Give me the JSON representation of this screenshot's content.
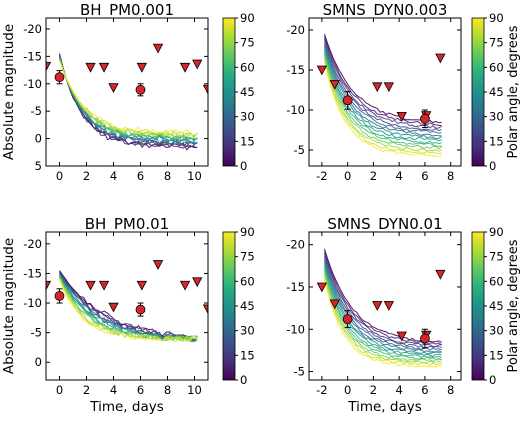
{
  "figure": {
    "ylabel_shared": "Absolute magnitude",
    "xlabel_shared": "Time, days",
    "colorbar_label": "Polar angle, degrees"
  },
  "chart_data": [
    {
      "type": "line",
      "title": "BH_PM0.001",
      "xlabel": "",
      "ylabel": "Absolute magnitude",
      "xlim": [
        -1,
        11
      ],
      "ylim": [
        5,
        -22
      ],
      "xticks": [
        0,
        2,
        4,
        6,
        8,
        10
      ],
      "yticks": [
        -20,
        -15,
        -10,
        -5,
        0,
        5
      ],
      "colorbar": {
        "min": 0,
        "max": 90,
        "ticks": [
          0,
          15,
          30,
          45,
          60,
          75,
          90
        ]
      },
      "model": {
        "t_start": 0,
        "t_end": 10.2,
        "peak_pole": -15.5,
        "peak_equator": -14.2,
        "tail_pole": 1.5,
        "tail_equator": -1.0,
        "tau_pole": 1.6,
        "tau_equator": 1.8,
        "curves": 14,
        "noise": 1.2
      },
      "detections": [
        {
          "x": 0,
          "y": -11.2,
          "err": 1.2
        },
        {
          "x": 6,
          "y": -8.9,
          "err": 1.1
        }
      ],
      "upper_limits": [
        {
          "x": -1,
          "y": -13.2
        },
        {
          "x": 2.3,
          "y": -13
        },
        {
          "x": 3.3,
          "y": -13
        },
        {
          "x": 4,
          "y": -9.3
        },
        {
          "x": 6.1,
          "y": -13
        },
        {
          "x": 7.3,
          "y": -16.5
        },
        {
          "x": 9.3,
          "y": -13
        },
        {
          "x": 10.2,
          "y": -13.6
        },
        {
          "x": 11,
          "y": -9
        }
      ]
    },
    {
      "type": "line",
      "title": "SMNS_DYN0.003",
      "xlabel": "",
      "ylabel": "",
      "xlim": [
        -3,
        8.8
      ],
      "ylim": [
        -3,
        -21.5
      ],
      "xticks": [
        -2,
        0,
        2,
        4,
        6,
        8
      ],
      "yticks": [
        -20,
        -15,
        -10,
        -5
      ],
      "colorbar": {
        "min": 0,
        "max": 90,
        "ticks": [
          0,
          15,
          30,
          45,
          60,
          75,
          90
        ]
      },
      "model": {
        "t_start": -1.8,
        "t_end": 7.3,
        "peak_pole": -19.5,
        "peak_equator": -16.0,
        "tail_pole": -8.3,
        "tail_equator": -4.3,
        "tau_pole": 2.2,
        "tau_equator": 1.6,
        "curves": 14,
        "noise": 0.35
      },
      "detections": [
        {
          "x": 0,
          "y": -11.2,
          "err": 1.1
        },
        {
          "x": 6,
          "y": -8.9,
          "err": 1.1
        }
      ],
      "upper_limits": [
        {
          "x": -2,
          "y": -15
        },
        {
          "x": -1,
          "y": -13.2
        },
        {
          "x": 2.3,
          "y": -12.9
        },
        {
          "x": 3.2,
          "y": -12.9
        },
        {
          "x": 4.2,
          "y": -9.2
        },
        {
          "x": 6.1,
          "y": -9.3
        },
        {
          "x": 7.2,
          "y": -16.5
        }
      ]
    },
    {
      "type": "line",
      "title": "BH_PM0.01",
      "xlabel": "Time, days",
      "ylabel": "Absolute magnitude",
      "xlim": [
        -1,
        11
      ],
      "ylim": [
        3,
        -22
      ],
      "xticks": [
        0,
        2,
        4,
        6,
        8,
        10
      ],
      "yticks": [
        -20,
        -15,
        -10,
        -5,
        0
      ],
      "colorbar": {
        "min": 0,
        "max": 90,
        "ticks": [
          0,
          15,
          30,
          45,
          60,
          75,
          90
        ]
      },
      "model": {
        "t_start": 0,
        "t_end": 10.2,
        "peak_pole": -15.5,
        "peak_equator": -14.0,
        "tail_pole": -3.5,
        "tail_equator": -4.0,
        "tau_pole": 3.5,
        "tau_equator": 1.6,
        "curves": 14,
        "noise": 1.0
      },
      "detections": [
        {
          "x": 0,
          "y": -11.2,
          "err": 1.2
        },
        {
          "x": 6,
          "y": -8.9,
          "err": 1.1
        }
      ],
      "upper_limits": [
        {
          "x": -1,
          "y": -13
        },
        {
          "x": 2.3,
          "y": -13
        },
        {
          "x": 3.3,
          "y": -13
        },
        {
          "x": 4,
          "y": -9.3
        },
        {
          "x": 6.1,
          "y": -13
        },
        {
          "x": 7.3,
          "y": -16.5
        },
        {
          "x": 9.3,
          "y": -13
        },
        {
          "x": 10.2,
          "y": -13.6
        },
        {
          "x": 11,
          "y": -9
        }
      ]
    },
    {
      "type": "line",
      "title": "SMNS_DYN0.01",
      "xlabel": "Time, days",
      "ylabel": "",
      "xlim": [
        -3,
        8.8
      ],
      "ylim": [
        -4,
        -21.5
      ],
      "xticks": [
        -2,
        0,
        2,
        4,
        6,
        8
      ],
      "yticks": [
        -20,
        -15,
        -10,
        -5
      ],
      "colorbar": {
        "min": 0,
        "max": 90,
        "ticks": [
          0,
          15,
          30,
          45,
          60,
          75,
          90
        ]
      },
      "model": {
        "t_start": -1.8,
        "t_end": 7.3,
        "peak_pole": -19.5,
        "peak_equator": -16.0,
        "tail_pole": -8.3,
        "tail_equator": -5.6,
        "tau_pole": 2.2,
        "tau_equator": 1.5,
        "curves": 14,
        "noise": 0.3
      },
      "detections": [
        {
          "x": 0,
          "y": -11.2,
          "err": 1.0
        },
        {
          "x": 6,
          "y": -8.9,
          "err": 1.1
        }
      ],
      "upper_limits": [
        {
          "x": -2,
          "y": -15
        },
        {
          "x": -1,
          "y": -13
        },
        {
          "x": 2.3,
          "y": -12.8
        },
        {
          "x": 3.2,
          "y": -12.8
        },
        {
          "x": 4.2,
          "y": -9.2
        },
        {
          "x": 6.1,
          "y": -9.3
        },
        {
          "x": 7.2,
          "y": -16.5
        }
      ]
    }
  ]
}
